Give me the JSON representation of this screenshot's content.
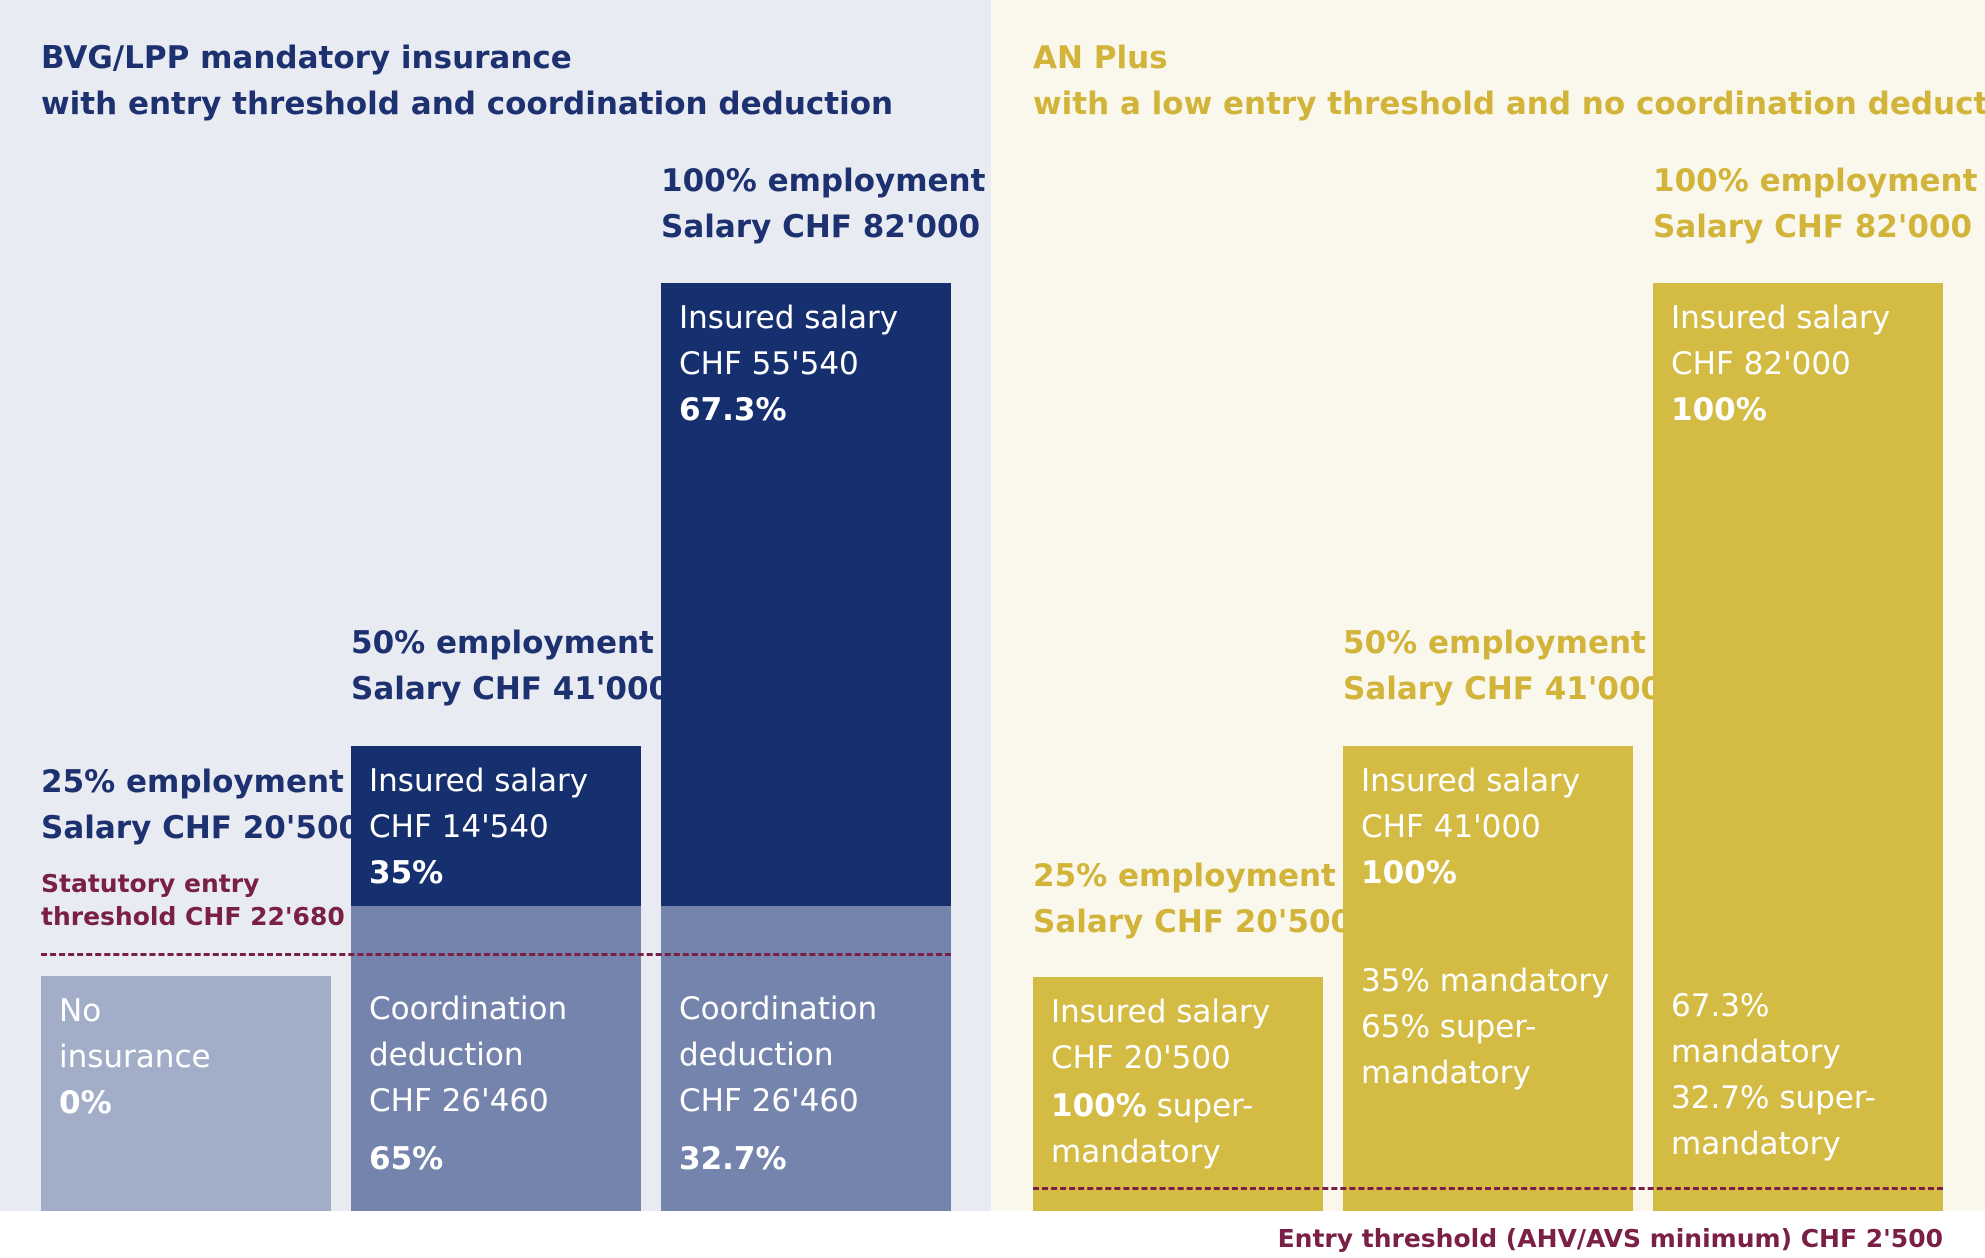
{
  "chart_data": {
    "type": "bar",
    "panels": [
      {
        "title_line1": "BVG/LPP mandatory insurance",
        "title_line2": "with entry threshold and coordination deduction",
        "threshold_label_line1": "Statutory entry",
        "threshold_label_line2": "threshold CHF 22'680",
        "threshold_value": 22680,
        "bars": [
          {
            "employment": "25% employment",
            "salary": "Salary CHF 20'500",
            "salary_value": 20500,
            "segments": [
              {
                "lines": [
                  "No",
                  "insurance"
                ],
                "pct": "0%",
                "value": 20500
              }
            ]
          },
          {
            "employment": "50% employment",
            "salary": "Salary CHF 41'000",
            "salary_value": 41000,
            "segments": [
              {
                "lines": [
                  "Insured salary",
                  "CHF 14'540"
                ],
                "pct": "35%",
                "value": 14540
              },
              {
                "lines": [
                  "Coordination",
                  "deduction",
                  "CHF 26'460"
                ],
                "pct": "65%",
                "value": 26460
              }
            ]
          },
          {
            "employment": "100% employment",
            "salary": "Salary CHF 82'000",
            "salary_value": 82000,
            "segments": [
              {
                "lines": [
                  "Insured salary",
                  "CHF 55'540"
                ],
                "pct": "67.3%",
                "value": 55540
              },
              {
                "lines": [
                  "Coordination",
                  "deduction",
                  "CHF 26'460"
                ],
                "pct": "32.7%",
                "value": 26460
              }
            ]
          }
        ]
      },
      {
        "title_line1": "AN Plus",
        "title_line2": "with a low entry threshold and no coordination deduction",
        "bars": [
          {
            "employment": "25% employment",
            "salary": "Salary CHF 20'500",
            "salary_value": 20500,
            "segments": [
              {
                "lines": [
                  "Insured salary",
                  "CHF 20'500"
                ],
                "pct": "100%",
                "pct_suffix": " super-",
                "tail": [
                  "mandatory"
                ],
                "value": 20500
              }
            ]
          },
          {
            "employment": "50% employment",
            "salary": "Salary CHF 41'000",
            "salary_value": 41000,
            "segments": [
              {
                "lines": [
                  "Insured salary",
                  "CHF 41'000"
                ],
                "pct": "100%",
                "split": [
                  "35% mandatory",
                  "65% super-",
                  "mandatory"
                ],
                "value": 41000
              }
            ]
          },
          {
            "employment": "100% employment",
            "salary": "Salary CHF 82'000",
            "salary_value": 82000,
            "segments": [
              {
                "lines": [
                  "Insured salary",
                  "CHF 82'000"
                ],
                "pct": "100%",
                "split": [
                  "67.3%",
                  "mandatory",
                  "32.7% super-",
                  "mandatory"
                ],
                "value": 82000
              }
            ]
          }
        ]
      }
    ],
    "entry_threshold_label": "Entry threshold (AHV/AVS minimum) CHF 2'500",
    "entry_threshold_value": 2500,
    "colors": {
      "insured_salary_bvg": "#16306f",
      "coordination_deduction": "#7484ad",
      "no_insurance": "#a2aec8",
      "an_plus": "#d4bb44",
      "threshold": "#7a2046",
      "title_bvg": "#1d3070",
      "title_an_plus": "#d2b43a"
    }
  }
}
